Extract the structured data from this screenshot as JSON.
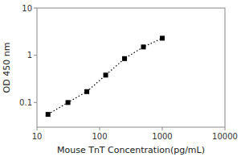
{
  "chart_data": {
    "type": "line",
    "x": [
      15,
      31.25,
      62.5,
      125,
      250,
      500,
      1000
    ],
    "values": [
      0.056,
      0.1,
      0.17,
      0.38,
      0.85,
      1.5,
      2.3
    ],
    "xlim": [
      10,
      10000
    ],
    "ylim": [
      0.03,
      10
    ],
    "xticks": [
      10,
      100,
      1000,
      10000
    ],
    "yticks": [
      0.1,
      1,
      10
    ],
    "xlabel": "Mouse TnT Concentration(pg/mL)",
    "ylabel": "OD 450 nm",
    "log": true,
    "marker": "square",
    "line_style": "dotted",
    "color": "black"
  }
}
